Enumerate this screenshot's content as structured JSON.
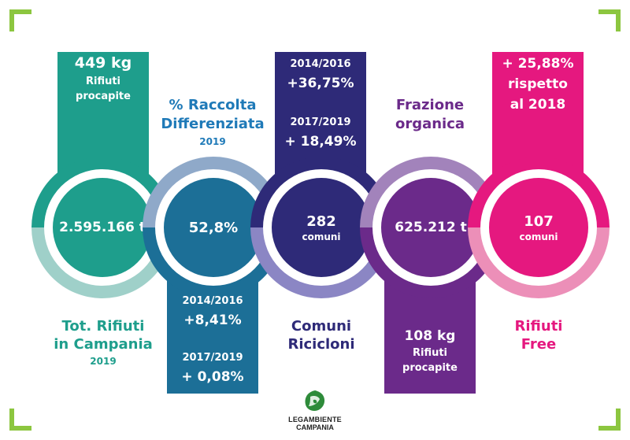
{
  "colors": {
    "teal": "#1e9e8c",
    "teal_light": "#9fd0c9",
    "blue": "#1c6f97",
    "blue_light": "#8fa9c9",
    "navy": "#2e2a78",
    "lavender": "#8b86c4",
    "purple": "#6b2a8a",
    "purple_light": "#a283bb",
    "pink": "#e5187f",
    "pink_light": "#ec8fb8",
    "corner": "#8cc63f",
    "title_blue": "#1f7ab8",
    "title_navy": "#2e2a78",
    "title_purple": "#6b2a8a",
    "title_pink": "#e5187f"
  },
  "col1": {
    "top_value": "449 kg",
    "top_label": "Rifiuti",
    "top_label2": "procapite",
    "circle_value": "2.595.166 t",
    "title_line1": "Tot. Rifiuti",
    "title_line2": "in Campania",
    "title_year": "2019"
  },
  "col2": {
    "title_line1": "% Raccolta",
    "title_line2": "Differenziata",
    "title_year": "2019",
    "circle_value": "52,8%",
    "bottom_period1": "2014/2016",
    "bottom_value1": "+8,41%",
    "bottom_period2": "2017/2019",
    "bottom_value2": "+ 0,08%"
  },
  "col3": {
    "top_period1": "2014/2016",
    "top_value1": "+36,75%",
    "top_period2": "2017/2019",
    "top_value2": "+ 18,49%",
    "circle_value": "282",
    "circle_unit": "comuni",
    "title_line1": "Comuni",
    "title_line2": "Ricicloni"
  },
  "col4": {
    "title_line1": "Frazione",
    "title_line2": "organica",
    "circle_value": "625.212 t",
    "bottom_value": "108 kg",
    "bottom_label": "Rifiuti",
    "bottom_label2": "procapite"
  },
  "col5": {
    "top_line1": "+ 25,88%",
    "top_line2": "rispetto",
    "top_line3": "al 2018",
    "circle_value": "107",
    "circle_unit": "comuni",
    "title_line1": "Rifiuti",
    "title_line2": "Free"
  },
  "logo": {
    "line1": "LEGAMBIENTE",
    "line2": "CAMPANIA"
  }
}
